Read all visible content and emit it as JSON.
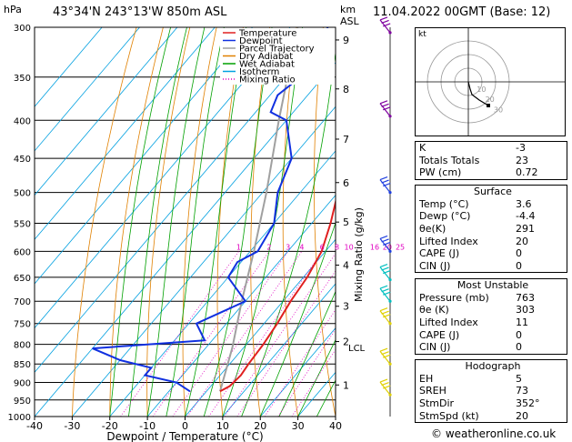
{
  "header": {
    "hpa_label": "hPa",
    "location": "43°34'N  243°13'W  850m  ASL",
    "km_label": "km",
    "asl_label": "ASL",
    "datetime": "11.04.2022  00GMT  (Base: 12)"
  },
  "chart_data": {
    "type": "skew-t log-p",
    "pressure_levels": [
      300,
      350,
      400,
      450,
      500,
      550,
      600,
      650,
      700,
      750,
      800,
      850,
      900,
      950,
      1000
    ],
    "temp_ticks": [
      -40,
      -30,
      -20,
      -10,
      0,
      10,
      20,
      30,
      40
    ],
    "xlim": [
      -40,
      40
    ],
    "ylim": [
      1000,
      300
    ],
    "xlabel": "Dewpoint / Temperature (°C)",
    "height_labels": [
      {
        "km": "9",
        "p": 312
      },
      {
        "km": "8",
        "p": 363
      },
      {
        "km": "7",
        "p": 424
      },
      {
        "km": "6",
        "p": 485
      },
      {
        "km": "5",
        "p": 548
      },
      {
        "km": "4",
        "p": 626
      },
      {
        "km": "3",
        "p": 711
      },
      {
        "km": "2",
        "p": 793
      },
      {
        "km": "1",
        "p": 907
      }
    ],
    "lcl_label": "LCL",
    "lcl_p": 808,
    "mixing_ratio_axis_label": "Mixing Ratio (g/kg)",
    "mixing_ratio_values": [
      "1",
      "2",
      "3",
      "4",
      "6",
      "8",
      "10",
      "16",
      "20",
      "25"
    ],
    "legend": [
      "Temperature",
      "Dewpoint",
      "Parcel Trajectory",
      "Dry Adiabat",
      "Wet Adiabat",
      "Isotherm",
      "Mixing Ratio"
    ],
    "colors": {
      "temperature": "#e02020",
      "dewpoint": "#1030e0",
      "parcel": "#a0a0a0",
      "dry_adiabat": "#e08000",
      "wet_adiabat": "#00a000",
      "isotherm": "#00a0e0",
      "mixing_ratio": "#e000c0",
      "wind_barb_upper": "#8000a0",
      "wind_barb_mid": "#2040e0",
      "wind_barb_low": "#00c0c0",
      "wind_barb_surface": "#e0d000"
    },
    "temperature_profile": [
      {
        "p": 300,
        "t": -33
      },
      {
        "p": 350,
        "t": -27
      },
      {
        "p": 400,
        "t": -21
      },
      {
        "p": 450,
        "t": -15
      },
      {
        "p": 500,
        "t": -10
      },
      {
        "p": 550,
        "t": -5
      },
      {
        "p": 600,
        "t": -1
      },
      {
        "p": 650,
        "t": 1
      },
      {
        "p": 700,
        "t": 2
      },
      {
        "p": 750,
        "t": 3.5
      },
      {
        "p": 800,
        "t": 4.5
      },
      {
        "p": 850,
        "t": 5
      },
      {
        "p": 880,
        "t": 5.5
      },
      {
        "p": 910,
        "t": 5
      },
      {
        "p": 925,
        "t": 3.6
      }
    ],
    "dewpoint_profile": [
      {
        "p": 300,
        "t": -50
      },
      {
        "p": 340,
        "t": -45
      },
      {
        "p": 370,
        "t": -48
      },
      {
        "p": 390,
        "t": -46
      },
      {
        "p": 400,
        "t": -40
      },
      {
        "p": 450,
        "t": -30
      },
      {
        "p": 500,
        "t": -26
      },
      {
        "p": 550,
        "t": -20
      },
      {
        "p": 600,
        "t": -18
      },
      {
        "p": 620,
        "t": -21
      },
      {
        "p": 650,
        "t": -20
      },
      {
        "p": 700,
        "t": -10
      },
      {
        "p": 750,
        "t": -18
      },
      {
        "p": 790,
        "t": -12
      },
      {
        "p": 810,
        "t": -40
      },
      {
        "p": 840,
        "t": -30
      },
      {
        "p": 860,
        "t": -20
      },
      {
        "p": 880,
        "t": -20
      },
      {
        "p": 900,
        "t": -10
      },
      {
        "p": 925,
        "t": -4.4
      }
    ],
    "parcel_profile": [
      {
        "p": 925,
        "t": 3.6
      },
      {
        "p": 808,
        "t": -3
      },
      {
        "p": 700,
        "t": -11
      },
      {
        "p": 600,
        "t": -19
      },
      {
        "p": 500,
        "t": -29
      },
      {
        "p": 400,
        "t": -42
      },
      {
        "p": 300,
        "t": -58
      }
    ],
    "wind_barbs": [
      {
        "p": 305,
        "band": "upper"
      },
      {
        "p": 395,
        "band": "upper"
      },
      {
        "p": 500,
        "band": "mid"
      },
      {
        "p": 600,
        "band": "mid"
      },
      {
        "p": 655,
        "band": "low"
      },
      {
        "p": 700,
        "band": "low"
      },
      {
        "p": 750,
        "band": "surface"
      },
      {
        "p": 850,
        "band": "surface"
      },
      {
        "p": 935,
        "band": "surface"
      }
    ]
  },
  "hodograph": {
    "unit_label": "kt",
    "ring_labels": [
      "10",
      "20",
      "30"
    ]
  },
  "indices": {
    "basic": [
      {
        "label": "K",
        "value": "-3"
      },
      {
        "label": "Totals Totals",
        "value": "23"
      },
      {
        "label": "PW (cm)",
        "value": "0.72"
      }
    ],
    "surface": {
      "title": "Surface",
      "rows": [
        {
          "label": "Temp (°C)",
          "value": "3.6"
        },
        {
          "label": "Dewp (°C)",
          "value": "-4.4"
        },
        {
          "label": "θe(K)",
          "value": "291"
        },
        {
          "label": "Lifted Index",
          "value": "20"
        },
        {
          "label": "CAPE (J)",
          "value": "0"
        },
        {
          "label": "CIN (J)",
          "value": "0"
        }
      ]
    },
    "most_unstable": {
      "title": "Most Unstable",
      "rows": [
        {
          "label": "Pressure (mb)",
          "value": "763"
        },
        {
          "label": "θe (K)",
          "value": "303"
        },
        {
          "label": "Lifted Index",
          "value": "11"
        },
        {
          "label": "CAPE (J)",
          "value": "0"
        },
        {
          "label": "CIN (J)",
          "value": "0"
        }
      ]
    },
    "hodograph": {
      "title": "Hodograph",
      "rows": [
        {
          "label": "EH",
          "value": "5"
        },
        {
          "label": "SREH",
          "value": "73"
        },
        {
          "label": "StmDir",
          "value": "352°"
        },
        {
          "label": "StmSpd (kt)",
          "value": "20"
        }
      ]
    }
  },
  "copyright": "© weatheronline.co.uk"
}
